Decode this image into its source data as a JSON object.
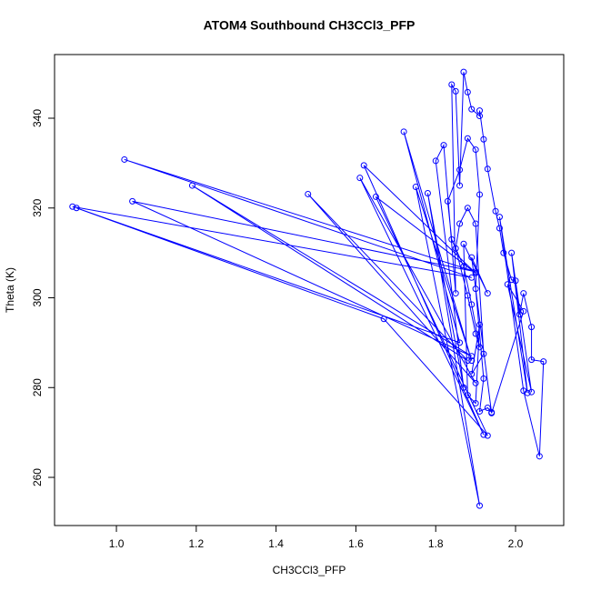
{
  "chart_data": {
    "type": "line",
    "markers": true,
    "title": "ATOM4 Southbound CH3CCl3_PFP",
    "x_label": "CH3CCl3_PFP",
    "y_label": "Theta (K)",
    "color": "#0000ff",
    "xlim": [
      0.845,
      2.1207
    ],
    "ylim": [
      249.27,
      354.18
    ],
    "xticks": [
      {
        "value": 1.0,
        "label": "1.0"
      },
      {
        "value": 1.2,
        "label": "1.2"
      },
      {
        "value": 1.4,
        "label": "1.4"
      },
      {
        "value": 1.6,
        "label": "1.6"
      },
      {
        "value": 1.8,
        "label": "1.8"
      },
      {
        "value": 2.0,
        "label": "2.0"
      }
    ],
    "yticks": [
      260,
      280,
      300,
      320,
      340
    ],
    "x": [
      0.89,
      1.89,
      1.02,
      1.9,
      1.04,
      1.89,
      1.19,
      1.88,
      1.48,
      1.9,
      1.61,
      1.92,
      1.62,
      1.9,
      1.65,
      1.93,
      1.67,
      0.9,
      1.86,
      1.72,
      1.89,
      1.75,
      1.91,
      1.78,
      1.87,
      1.8,
      1.82,
      1.85,
      1.84,
      1.85,
      1.86,
      1.87,
      1.88,
      1.89,
      1.91,
      1.91,
      1.92,
      1.93,
      1.95,
      1.96,
      1.97,
      1.99,
      2.0,
      2.01,
      2.02,
      2.04,
      2.04,
      2.07,
      2.06,
      2.02,
      1.96,
      2.03,
      1.99,
      2.04,
      1.98,
      2.02,
      1.94,
      1.89,
      1.93,
      1.87,
      1.88,
      1.9,
      1.91,
      1.89,
      1.92,
      1.9,
      1.88,
      1.86,
      1.85,
      1.88,
      1.9,
      1.91,
      1.89,
      1.87,
      1.84,
      1.83,
      1.86,
      1.88,
      1.9,
      1.91,
      1.9,
      1.92,
      1.91,
      1.93,
      1.94
    ],
    "y": [
      320.3,
      304.5,
      330.8,
      305.8,
      321.5,
      287,
      325.0,
      286,
      323.1,
      281,
      326.7,
      269.5,
      329.5,
      305.5,
      322.5,
      269.3,
      295.3,
      320,
      290,
      337,
      286,
      324.7,
      253.7,
      323.3,
      280,
      330.5,
      334,
      301,
      347.5,
      346,
      325,
      350.3,
      345.8,
      342,
      340.5,
      341.7,
      335.3,
      328.7,
      319.3,
      315.5,
      310,
      304,
      303.8,
      296.3,
      301,
      293.5,
      286.2,
      285.8,
      264.7,
      279.3,
      318,
      278.8,
      310,
      279,
      303,
      297,
      274.3,
      309,
      301,
      312,
      278.3,
      276.5,
      294,
      283,
      287.5,
      316.5,
      320,
      316.5,
      311,
      300.5,
      292,
      289,
      298.5,
      307,
      313,
      321.5,
      328.5,
      335.5,
      333,
      323,
      302,
      282,
      274.7,
      275.5,
      274.5
    ]
  }
}
